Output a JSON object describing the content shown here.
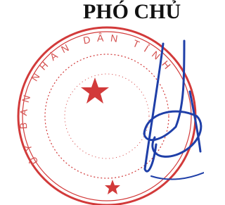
{
  "header": {
    "title": "PHÓ CHỦ"
  },
  "stamp": {
    "ring_text": "ỦY BAN NHÂN DÂN TỈNH"
  }
}
